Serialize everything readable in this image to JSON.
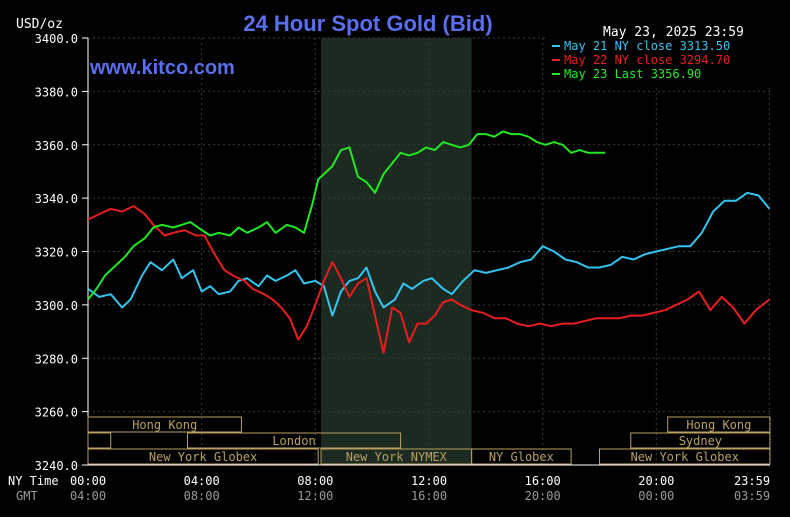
{
  "colors": {
    "background": "#000000",
    "title": "#5a6ef0",
    "grid": "#3a3a3a",
    "nymex_band": "#1c2a22",
    "session_box": "#b8a060",
    "series_may21": "#33c4f0",
    "series_may22": "#e81e1e",
    "series_may23": "#22e822"
  },
  "chart_data": {
    "type": "line",
    "title": "24 Hour Spot Gold (Bid)",
    "site": "www.kitco.com",
    "unit_label": "USD/oz",
    "date_stamp": "May 23, 2025 23:59",
    "ylim": [
      3240,
      3400
    ],
    "xlim": [
      0,
      24
    ],
    "y_ticks": [
      "3400.0",
      "3380.0",
      "3360.0",
      "3340.0",
      "3320.0",
      "3300.0",
      "3280.0",
      "3260.0",
      "3240.0"
    ],
    "y_tick_values": [
      3400,
      3380,
      3360,
      3340,
      3320,
      3300,
      3280,
      3260,
      3240
    ],
    "x_row1_label": "NY Time",
    "x_row2_label": "GMT",
    "x_ticks_ny": [
      "00:00",
      "04:00",
      "08:00",
      "12:00",
      "16:00",
      "20:00",
      "23:59"
    ],
    "x_ticks_gmt": [
      "04:00",
      "08:00",
      "12:00",
      "16:00",
      "20:00",
      "00:00",
      "03:59"
    ],
    "x_tick_values": [
      0,
      4,
      8,
      12,
      16,
      20,
      23.98
    ],
    "legend_position": "top-right",
    "shaded_region": [
      8.2,
      13.5
    ],
    "series": [
      {
        "name": "May 21 NY close 3313.50",
        "color_key": "series_may21",
        "x": [
          0,
          0.4,
          0.8,
          1.2,
          1.5,
          1.9,
          2.2,
          2.6,
          3.0,
          3.3,
          3.7,
          4.0,
          4.3,
          4.6,
          5.0,
          5.3,
          5.6,
          6.0,
          6.3,
          6.6,
          7.0,
          7.3,
          7.6,
          8.0,
          8.3,
          8.6,
          8.9,
          9.2,
          9.5,
          9.8,
          10.1,
          10.4,
          10.8,
          11.1,
          11.4,
          11.8,
          12.1,
          12.5,
          12.8,
          13.2,
          13.6,
          14.0,
          14.4,
          14.8,
          15.2,
          15.6,
          16.0,
          16.4,
          16.8,
          17.2,
          17.6,
          18.0,
          18.4,
          18.8,
          19.2,
          19.6,
          20.0,
          20.4,
          20.8,
          21.2,
          21.6,
          22.0,
          22.4,
          22.8,
          23.2,
          23.6,
          23.98
        ],
        "y": [
          3306,
          3303,
          3304,
          3299,
          3302,
          3311,
          3316,
          3313,
          3317,
          3310,
          3313,
          3305,
          3307,
          3304,
          3305,
          3309,
          3310,
          3307,
          3311,
          3309,
          3311,
          3313,
          3308,
          3309,
          3307,
          3296,
          3305,
          3309,
          3310,
          3314,
          3305,
          3299,
          3302,
          3308,
          3306,
          3309,
          3310,
          3306,
          3304,
          3309,
          3313,
          3312,
          3313,
          3314,
          3316,
          3317,
          3322,
          3320,
          3317,
          3316,
          3314,
          3314,
          3315,
          3318,
          3317,
          3319,
          3320,
          3321,
          3322,
          3322,
          3327,
          3335,
          3339,
          3339,
          3342,
          3341,
          3336
        ]
      },
      {
        "name": "May 22 NY close 3294.70",
        "color_key": "series_may22",
        "x": [
          0,
          0.4,
          0.8,
          1.2,
          1.6,
          2.0,
          2.3,
          2.7,
          3.0,
          3.4,
          3.8,
          4.1,
          4.4,
          4.8,
          5.1,
          5.5,
          5.8,
          6.2,
          6.5,
          6.8,
          7.1,
          7.4,
          7.7,
          8.0,
          8.3,
          8.6,
          8.9,
          9.2,
          9.5,
          9.8,
          10.1,
          10.4,
          10.7,
          11.0,
          11.3,
          11.6,
          11.9,
          12.2,
          12.5,
          12.8,
          13.1,
          13.5,
          13.9,
          14.3,
          14.7,
          15.1,
          15.5,
          15.9,
          16.3,
          16.7,
          17.1,
          17.5,
          17.9,
          18.3,
          18.7,
          19.1,
          19.5,
          19.9,
          20.3,
          20.7,
          21.1,
          21.5,
          21.9,
          22.3,
          22.7,
          23.1,
          23.5,
          23.98
        ],
        "y": [
          3332,
          3334,
          3336,
          3335,
          3337,
          3334,
          3330,
          3326,
          3327,
          3328,
          3326,
          3326,
          3320,
          3313,
          3311,
          3309,
          3306,
          3304,
          3302,
          3299,
          3295,
          3287,
          3292,
          3300,
          3309,
          3316,
          3310,
          3303,
          3308,
          3310,
          3296,
          3282,
          3299,
          3297,
          3286,
          3293,
          3293,
          3296,
          3301,
          3302,
          3300,
          3298,
          3297,
          3295,
          3295,
          3293,
          3292,
          3293,
          3292,
          3293,
          3293,
          3294,
          3295,
          3295,
          3295,
          3296,
          3296,
          3297,
          3298,
          3300,
          3302,
          3305,
          3298,
          3303,
          3299,
          3293,
          3298,
          3302
        ]
      },
      {
        "name": "May 23 Last 3356.90",
        "color_key": "series_may23",
        "x": [
          0,
          0.3,
          0.6,
          1.0,
          1.3,
          1.6,
          2.0,
          2.3,
          2.6,
          3.0,
          3.3,
          3.6,
          4.0,
          4.3,
          4.6,
          5.0,
          5.3,
          5.6,
          6.0,
          6.3,
          6.6,
          7.0,
          7.3,
          7.6,
          7.9,
          8.1,
          8.3,
          8.6,
          8.9,
          9.2,
          9.5,
          9.8,
          10.1,
          10.4,
          10.7,
          11.0,
          11.3,
          11.6,
          11.9,
          12.2,
          12.5,
          12.8,
          13.1,
          13.4,
          13.7,
          14.0,
          14.3,
          14.6,
          14.9,
          15.2,
          15.5,
          15.8,
          16.1,
          16.4,
          16.7,
          17.0,
          17.3,
          17.6,
          17.9,
          18.2
        ],
        "y": [
          3302,
          3306,
          3311,
          3315,
          3318,
          3322,
          3325,
          3329,
          3330,
          3329,
          3330,
          3331,
          3328,
          3326,
          3327,
          3326,
          3329,
          3327,
          3329,
          3331,
          3327,
          3330,
          3329,
          3327,
          3338,
          3347,
          3349,
          3352,
          3358,
          3359,
          3348,
          3346,
          3342,
          3349,
          3353,
          3357,
          3356,
          3357,
          3359,
          3358,
          3361,
          3360,
          3359,
          3360,
          3364,
          3364,
          3363,
          3365,
          3364,
          3364,
          3363,
          3361,
          3360,
          3361,
          3360,
          3357,
          3358,
          3357,
          3357,
          3357
        ]
      }
    ],
    "sessions": [
      {
        "label": "Hong Kong",
        "row": 0,
        "start": 0,
        "end": 5.4
      },
      {
        "label": "Hong Kong",
        "row": 0,
        "start": 20.4,
        "end": 24
      },
      {
        "label": "",
        "row": 1,
        "start": 0,
        "end": 0.8
      },
      {
        "label": "London",
        "row": 1,
        "start": 3.5,
        "end": 11.0
      },
      {
        "label": "Sydney",
        "row": 1,
        "start": 19.1,
        "end": 24
      },
      {
        "label": "New York Globex",
        "row": 2,
        "start": 0,
        "end": 8.1
      },
      {
        "label": "New York NYMEX",
        "row": 2,
        "start": 8.2,
        "end": 13.5
      },
      {
        "label": "NY Globex",
        "row": 2,
        "start": 13.5,
        "end": 17.0
      },
      {
        "label": "New York Globex",
        "row": 2,
        "start": 18.0,
        "end": 24
      }
    ]
  }
}
